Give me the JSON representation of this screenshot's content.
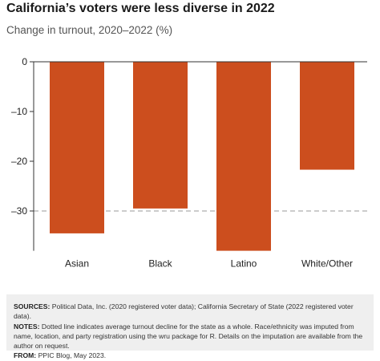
{
  "title": "California’s voters were less diverse in 2022",
  "subtitle": "Change in turnout, 2020–2022 (%)",
  "chart_data": {
    "type": "bar",
    "categories": [
      "Asian",
      "Black",
      "Latino",
      "White/Other"
    ],
    "values": [
      -34.5,
      -29.5,
      -38,
      -21.7
    ],
    "ylim": [
      -38,
      0
    ],
    "yticks": [
      0,
      -10,
      -20,
      -30
    ],
    "ytick_labels": [
      "0",
      "–10",
      "–20",
      "–30"
    ],
    "reference_line": -30,
    "bar_color": "#cc4e1e"
  },
  "footer": {
    "sources_label": "SOURCES:",
    "sources_text": "Political Data, Inc. (2020 registered voter data); California Secretary of State (2022 registered voter data).",
    "notes_label": "NOTES:",
    "notes_text": "Dotted line indicates average turnout decline for the state as a whole. Race/ethnicity was imputed from name, location, and party registration using the wru package for R. Details on the imputation are available from the author on request.",
    "from_label": "FROM:",
    "from_text": "PPIC Blog, May 2023."
  }
}
